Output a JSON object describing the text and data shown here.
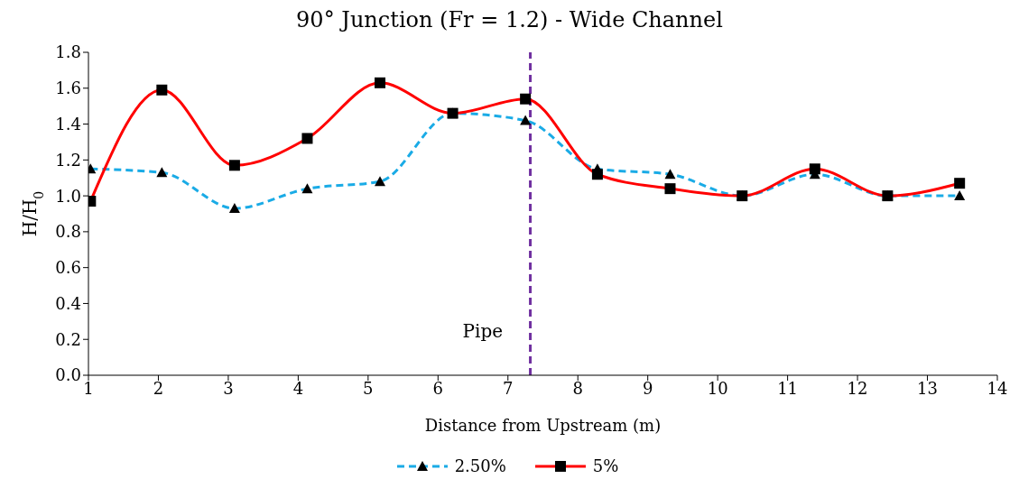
{
  "chart_data": {
    "type": "line",
    "title": "90° Junction (Fr = 1.2) - Wide Channel",
    "xlabel": "Distance from Upstream (m)",
    "ylabel": "H/H$_{0}$",
    "x": [
      1.03,
      2.05,
      3.09,
      4.13,
      5.17,
      6.21,
      7.25,
      8.28,
      9.32,
      10.35,
      11.39,
      12.43,
      13.46
    ],
    "series": [
      {
        "name": "2.50%",
        "color": "#1aabe6",
        "marker": "triangle",
        "line_style": "dashed",
        "values": [
          1.15,
          1.13,
          0.93,
          1.04,
          1.08,
          1.46,
          1.42,
          1.15,
          1.12,
          1.0,
          1.12,
          1.0,
          1.0
        ]
      },
      {
        "name": "5%",
        "color": "#ff0000",
        "marker": "square",
        "line_style": "solid",
        "values": [
          0.97,
          1.59,
          1.17,
          1.32,
          1.63,
          1.46,
          1.54,
          1.12,
          1.04,
          1.0,
          1.15,
          1.0,
          1.07
        ]
      }
    ],
    "xlim": [
      1,
      14
    ],
    "xticks": [
      1,
      2,
      3,
      4,
      5,
      6,
      7,
      8,
      9,
      10,
      11,
      12,
      13,
      14
    ],
    "ylim": [
      0,
      1.8
    ],
    "yticks": [
      {
        "value": 0,
        "label": "0.0"
      },
      0.2,
      0.4,
      0.6,
      0.8,
      {
        "value": 1,
        "label": "1.0"
      },
      1.2,
      1.4,
      1.6,
      1.8
    ],
    "ref_lines": [
      {
        "axis": "x",
        "value": 7.32,
        "label": "Pipe",
        "color": "#7030a0",
        "line_style": "dashed"
      }
    ],
    "grid": false,
    "legend": "bottom"
  }
}
